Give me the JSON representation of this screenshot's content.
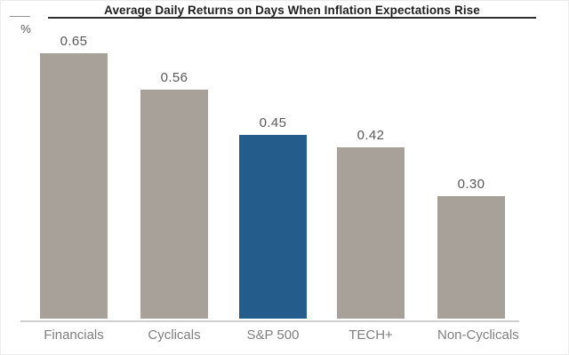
{
  "chart_data": {
    "type": "bar",
    "title": "Average Daily Returns on Days When Inflation Expectations Rise",
    "ylabel": "%",
    "xlabel": "",
    "categories": [
      "Financials",
      "Cyclicals",
      "S&P 500",
      "TECH+",
      "Non-Cyclicals"
    ],
    "values": [
      0.65,
      0.56,
      0.45,
      0.42,
      0.3
    ],
    "value_labels": [
      "0.65",
      "0.56",
      "0.45",
      "0.42",
      "0.30"
    ],
    "bar_colors": [
      "#a8a19a",
      "#a8a19a",
      "#245d8c",
      "#a8a19a",
      "#a8a19a"
    ],
    "highlight_category": "S&P 500",
    "ylim": [
      0,
      0.72
    ],
    "grid": false,
    "legend": false,
    "colors": {
      "default_bar": "#a8a19a",
      "highlight_bar": "#245d8c",
      "axis_line": "#cfcfcf",
      "title_text": "#1f1f1f",
      "title_rule": "#2e2e2e",
      "value_label": "#595959",
      "category_label": "#7f7f7f",
      "background": "#ffffff"
    }
  }
}
